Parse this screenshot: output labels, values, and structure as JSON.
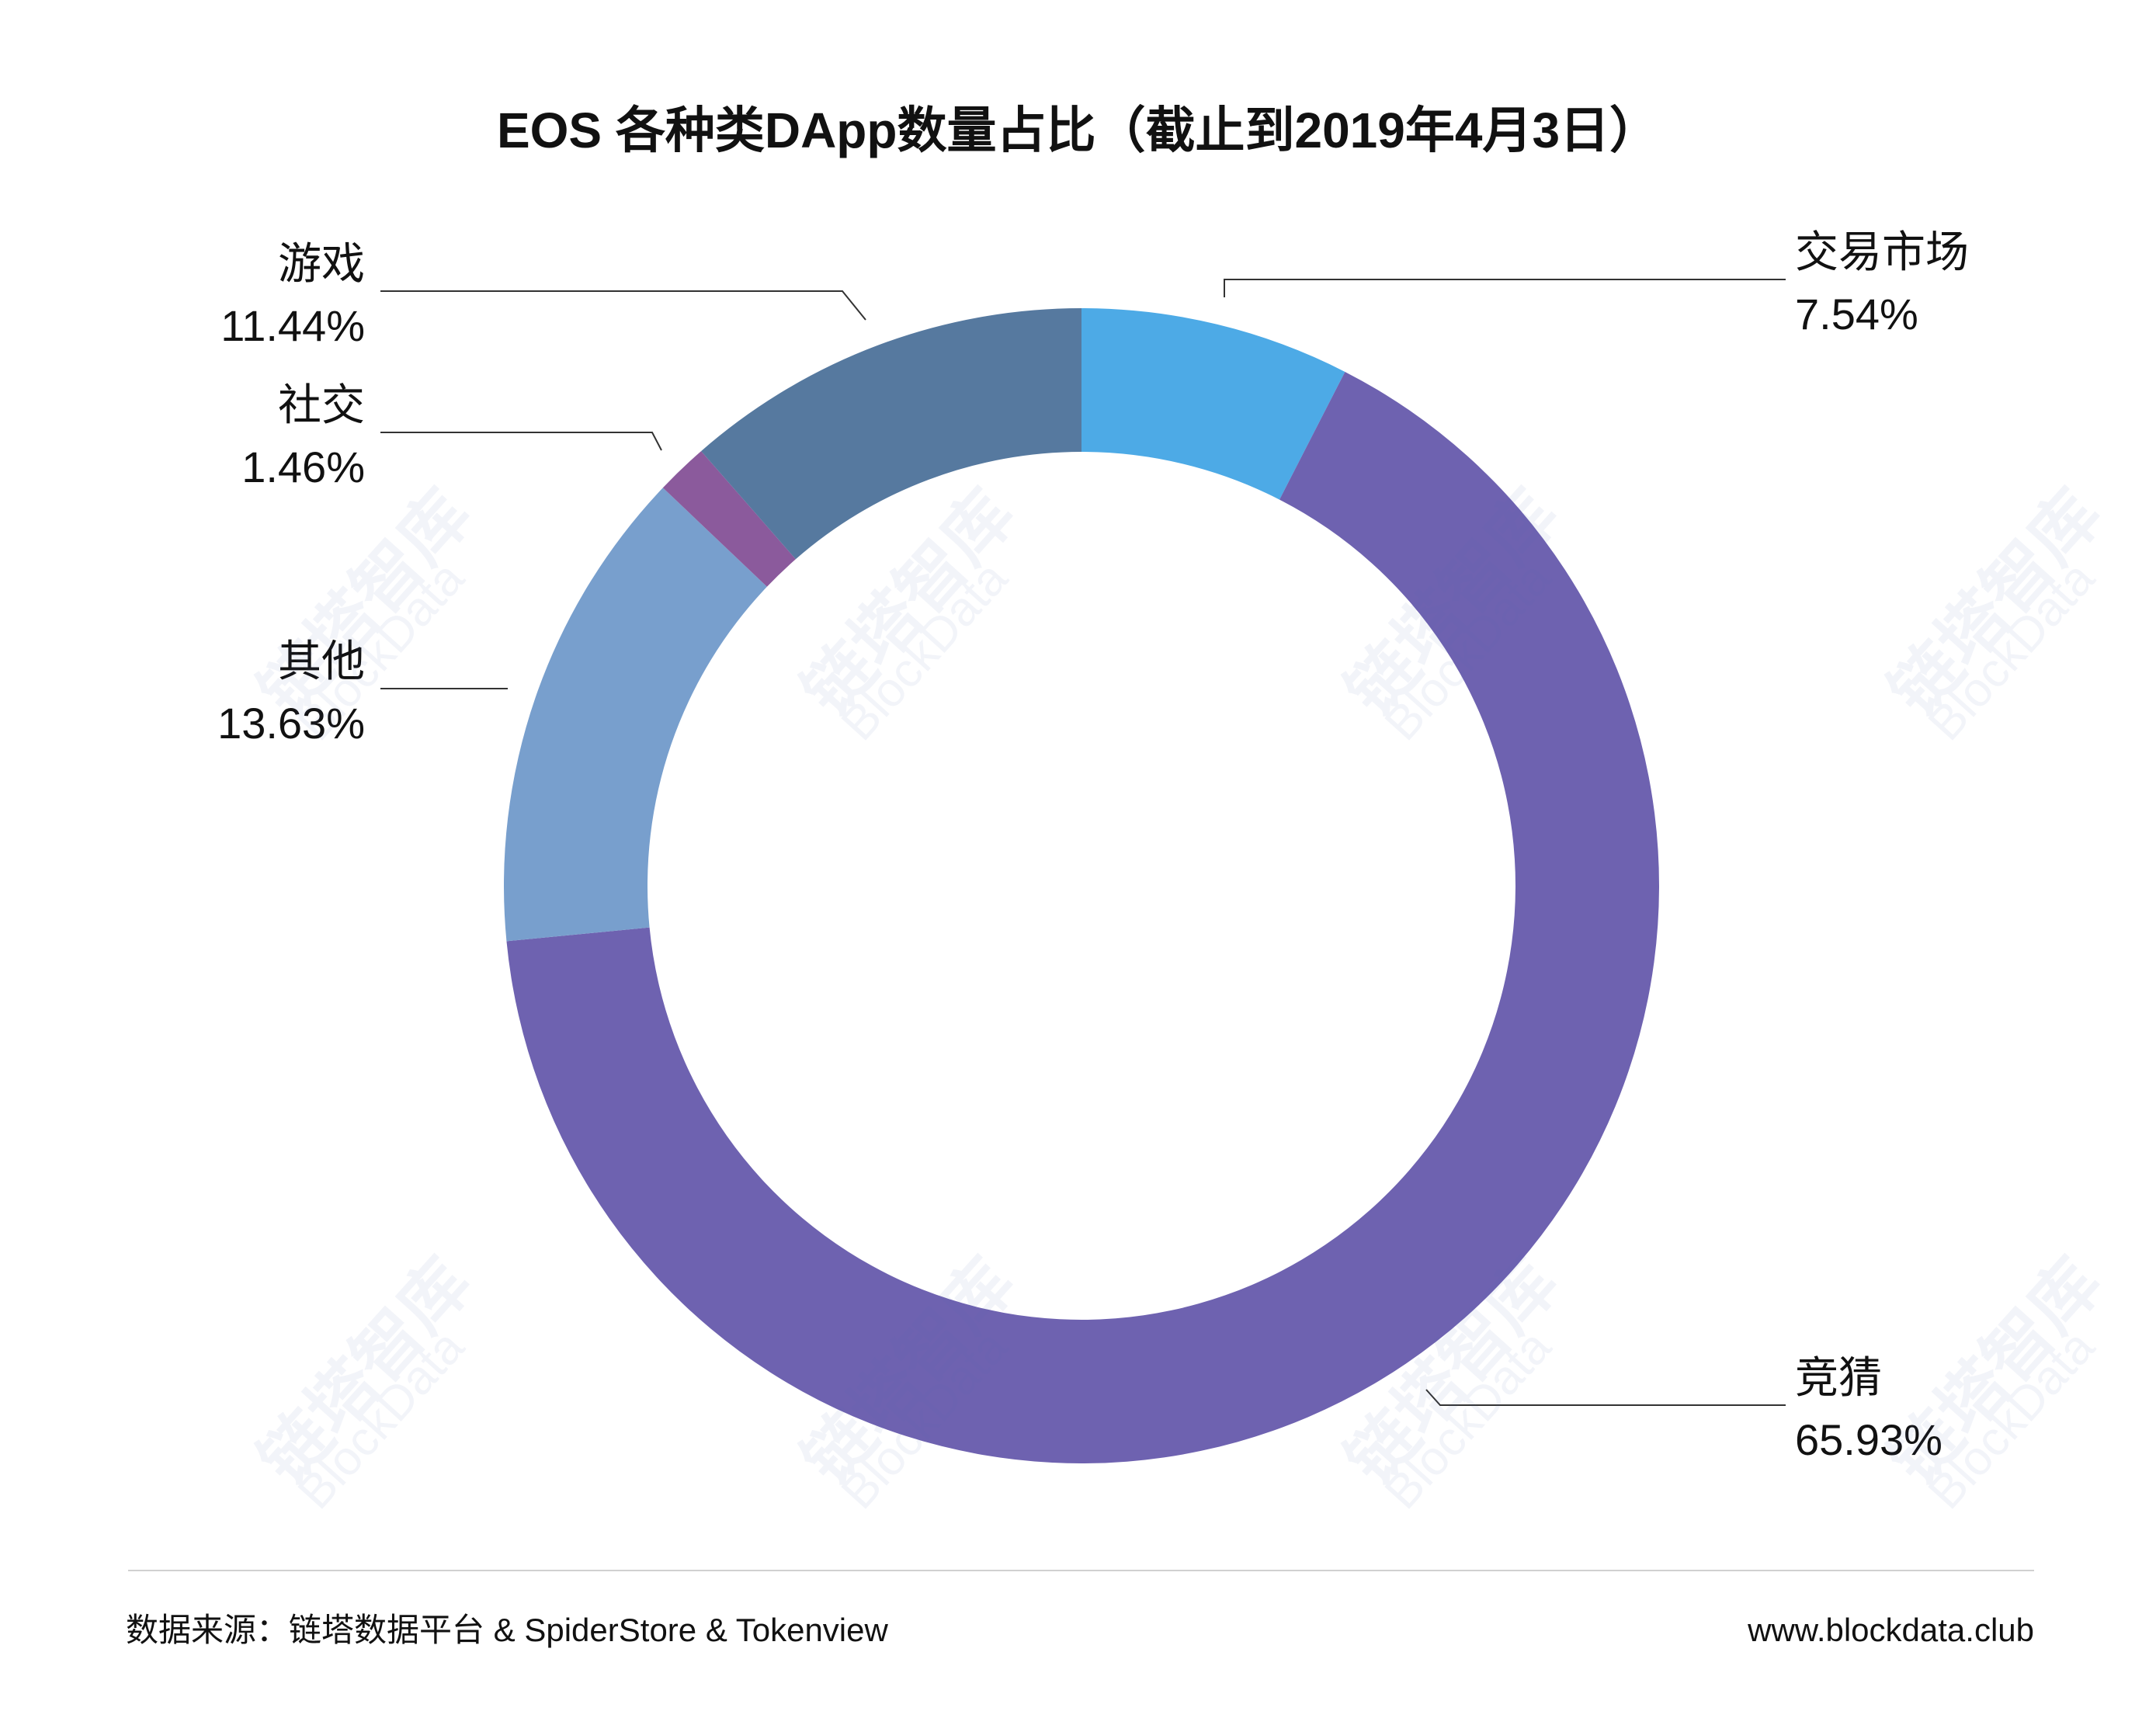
{
  "chart_data": {
    "type": "pie",
    "variant": "donut",
    "title": "EOS 各种类DApp数量占比（截止到2019年4月3日）",
    "slices": [
      {
        "label": "交易市场",
        "value": 7.54,
        "value_text": "7.54%",
        "color": "#4DAAE6"
      },
      {
        "label": "竞猜",
        "value": 65.93,
        "value_text": "65.93%",
        "color": "#6E62B0"
      },
      {
        "label": "其他",
        "value": 13.63,
        "value_text": "13.63%",
        "color": "#789FCD"
      },
      {
        "label": "社交",
        "value": 1.46,
        "value_text": "1.46%",
        "color": "#8B5A9C"
      },
      {
        "label": "游戏",
        "value": 11.44,
        "value_text": "11.44%",
        "color": "#56799F"
      }
    ],
    "legend": "none"
  },
  "footer": {
    "source": "数据来源：链塔数据平台 & SpiderStore & Tokenview",
    "site": "www.blockdata.club"
  },
  "watermark": {
    "text_cn": "链塔智库",
    "text_en": "BlockData"
  }
}
